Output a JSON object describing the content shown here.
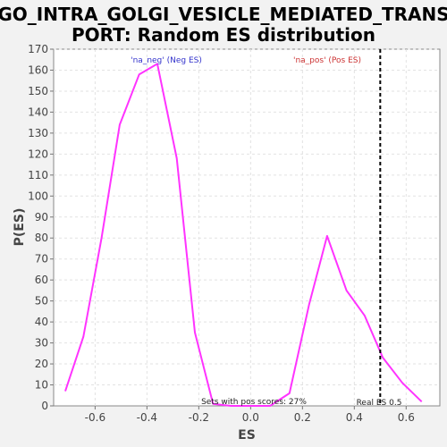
{
  "chart_data": {
    "type": "line",
    "title_line1": "GO_INTRA_GOLGI_VESICLE_MEDIATED_TRANS",
    "title_line2": "PORT: Random ES distribution",
    "xlabel": "ES",
    "ylabel": "P(ES)",
    "xlim": [
      -0.76,
      0.73
    ],
    "ylim": [
      0,
      170
    ],
    "x_ticks": [
      -0.6,
      -0.4,
      -0.2,
      0.0,
      0.2,
      0.4,
      0.6
    ],
    "x_tick_labels": [
      "-0.6",
      "-0.4",
      "-0.2",
      "0.0",
      "0.2",
      "0.4",
      "0.6"
    ],
    "y_ticks": [
      0,
      10,
      20,
      30,
      40,
      50,
      60,
      70,
      80,
      90,
      100,
      110,
      120,
      130,
      140,
      150,
      160,
      170
    ],
    "y_tick_labels": [
      "0",
      "10",
      "20",
      "30",
      "40",
      "50",
      "60",
      "70",
      "80",
      "90",
      "100",
      "110",
      "120",
      "130",
      "140",
      "150",
      "160",
      "170"
    ],
    "grid": true,
    "series": [
      {
        "color": "#ff33ff",
        "x": [
          -0.715,
          -0.645,
          -0.575,
          -0.505,
          -0.43,
          -0.36,
          -0.285,
          -0.215,
          -0.145,
          -0.075,
          0.0,
          0.075,
          0.15,
          0.225,
          0.295,
          0.37,
          0.44,
          0.51,
          0.585,
          0.66
        ],
        "y": [
          7,
          33,
          80,
          134,
          158,
          163,
          118,
          35,
          1,
          0,
          0,
          0,
          6,
          48,
          81,
          55,
          43,
          23,
          11,
          2
        ]
      }
    ],
    "real_es": 0.5,
    "real_es_label": "Real ES 0.5",
    "annotations": {
      "neg_label": "'na_neg' (Neg ES)",
      "neg_color": "#3333cc",
      "pos_label": "'na_pos' (Pos ES)",
      "pos_color": "#cc3333",
      "pos_scores_text": "Sets with pos scores: 27%"
    }
  }
}
